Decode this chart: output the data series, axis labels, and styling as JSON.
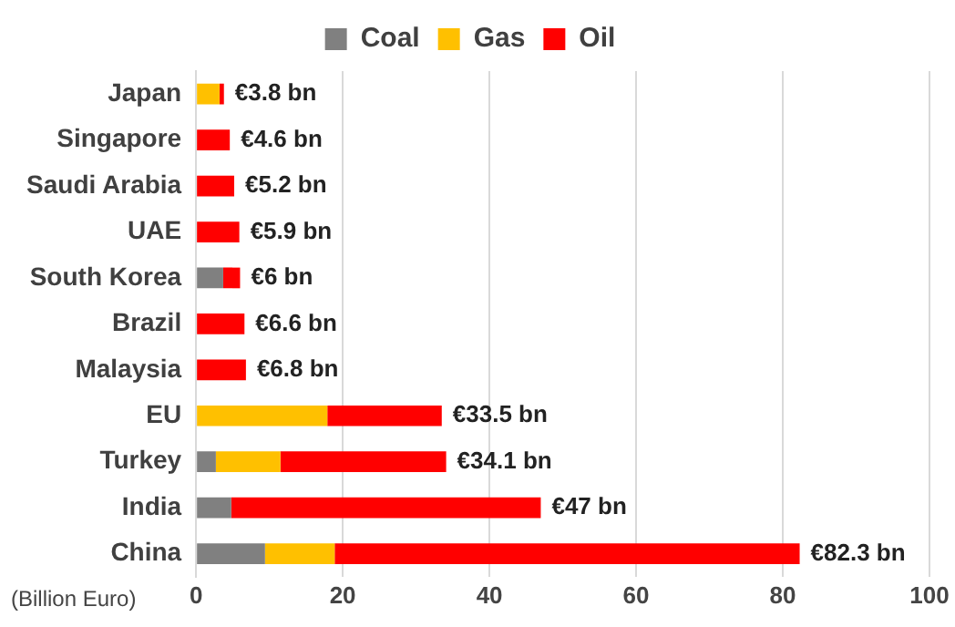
{
  "chart_data": {
    "type": "bar",
    "orientation": "horizontal",
    "stacked": true,
    "categories": [
      "Japan",
      "Singapore",
      "Saudi Arabia",
      "UAE",
      "South Korea",
      "Brazil",
      "Malaysia",
      "EU",
      "Turkey",
      "India",
      "China"
    ],
    "series": [
      {
        "name": "Coal",
        "color": "#808080",
        "values": [
          0,
          0,
          0,
          0,
          3.7,
          0,
          0,
          0,
          2.7,
          4.8,
          9.4
        ]
      },
      {
        "name": "Gas",
        "color": "#ffc000",
        "values": [
          3.2,
          0,
          0,
          0,
          0,
          0,
          0,
          17.9,
          8.8,
          0,
          9.5
        ]
      },
      {
        "name": "Oil",
        "color": "#ff0000",
        "values": [
          0.6,
          4.6,
          5.2,
          5.9,
          2.3,
          6.6,
          6.8,
          15.6,
          22.6,
          42.2,
          63.4
        ]
      }
    ],
    "totals": [
      "€3.8 bn",
      "€4.6 bn",
      "€5.2 bn",
      "€5.9 bn",
      "€6 bn",
      "€6.6 bn",
      "€6.8 bn",
      "€33.5 bn",
      "€34.1 bn",
      "€47 bn",
      "€82.3 bn"
    ],
    "xlabel": "(Billion Euro)",
    "xlim": [
      0,
      100
    ],
    "xticks": [
      0,
      20,
      40,
      60,
      80,
      100
    ],
    "grid": "x",
    "legend": "top"
  }
}
